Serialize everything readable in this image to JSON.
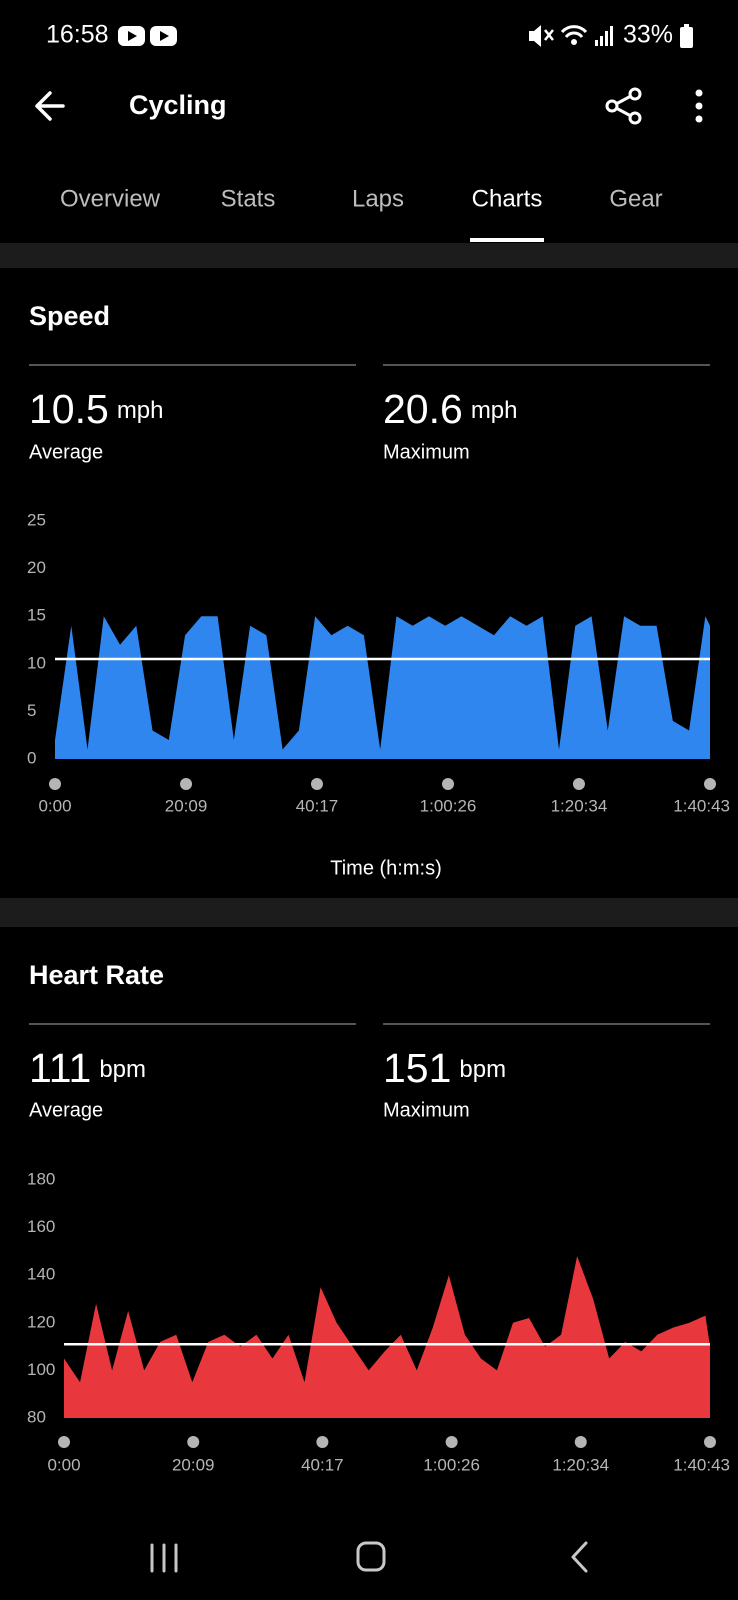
{
  "status_bar": {
    "time": "16:58",
    "battery": "33%"
  },
  "header": {
    "title": "Cycling"
  },
  "tabs": [
    "Overview",
    "Stats",
    "Laps",
    "Charts",
    "Gear"
  ],
  "chart_data": [
    {
      "type": "area",
      "title": "Speed",
      "color": "#2f86ef",
      "stats": [
        {
          "value": 10.5,
          "unit": "mph",
          "label": "Average"
        },
        {
          "value": 20.6,
          "unit": "mph",
          "label": "Maximum"
        }
      ],
      "xlabel": "Time (h:m:s)",
      "x": [
        0,
        150,
        300,
        450,
        600,
        750,
        900,
        1050,
        1200,
        1350,
        1500,
        1650,
        1800,
        1950,
        2100,
        2250,
        2400,
        2550,
        2700,
        2850,
        3000,
        3150,
        3300,
        3450,
        3600,
        3750,
        3900,
        4050,
        4200,
        4350,
        4500,
        4650,
        4800,
        4950,
        5100,
        5250,
        5400,
        5550,
        5700,
        5850,
        6000,
        6043
      ],
      "values": [
        2,
        14,
        1,
        15,
        12,
        14,
        3,
        2,
        13,
        15,
        15,
        2,
        14,
        13,
        1,
        3,
        15,
        13,
        14,
        13,
        1,
        15,
        14,
        15,
        14,
        15,
        14,
        13,
        15,
        14,
        15,
        1,
        14,
        15,
        3,
        15,
        14,
        14,
        4,
        3,
        15,
        14
      ],
      "xlim": [
        0,
        6043
      ],
      "xticks": [
        {
          "value": 0,
          "label": "0:00"
        },
        {
          "value": 1209,
          "label": "20:09"
        },
        {
          "value": 2417,
          "label": "40:17"
        },
        {
          "value": 3626,
          "label": "1:00:26"
        },
        {
          "value": 4834,
          "label": "1:20:34"
        },
        {
          "value": 6043,
          "label": "1:40:43"
        }
      ],
      "ylim": [
        0,
        25
      ],
      "yticks": [
        0,
        5,
        10,
        15,
        20,
        25
      ]
    },
    {
      "type": "area",
      "title": "Heart Rate",
      "color": "#e8383d",
      "stats": [
        {
          "value": 111,
          "unit": "bpm",
          "label": "Average"
        },
        {
          "value": 151,
          "unit": "bpm",
          "label": "Maximum"
        }
      ],
      "x": [
        0,
        150,
        300,
        450,
        600,
        750,
        900,
        1050,
        1200,
        1350,
        1500,
        1650,
        1800,
        1950,
        2100,
        2250,
        2400,
        2550,
        2700,
        2850,
        3000,
        3150,
        3300,
        3450,
        3600,
        3750,
        3900,
        4050,
        4200,
        4350,
        4500,
        4650,
        4800,
        4950,
        5100,
        5250,
        5400,
        5550,
        5700,
        5850,
        6000,
        6043
      ],
      "values": [
        105,
        95,
        128,
        100,
        125,
        100,
        112,
        115,
        95,
        112,
        115,
        110,
        115,
        105,
        115,
        95,
        135,
        120,
        110,
        100,
        108,
        115,
        100,
        118,
        140,
        115,
        105,
        100,
        120,
        122,
        110,
        115,
        148,
        130,
        105,
        112,
        108,
        115,
        118,
        120,
        123,
        110
      ],
      "xlim": [
        0,
        6043
      ],
      "xticks": [
        {
          "value": 0,
          "label": "0:00"
        },
        {
          "value": 1209,
          "label": "20:09"
        },
        {
          "value": 2417,
          "label": "40:17"
        },
        {
          "value": 3626,
          "label": "1:00:26"
        },
        {
          "value": 4834,
          "label": "1:20:34"
        },
        {
          "value": 6043,
          "label": "1:40:43"
        }
      ],
      "ylim": [
        80,
        180
      ],
      "yticks": [
        80,
        100,
        120,
        140,
        160,
        180
      ]
    }
  ]
}
